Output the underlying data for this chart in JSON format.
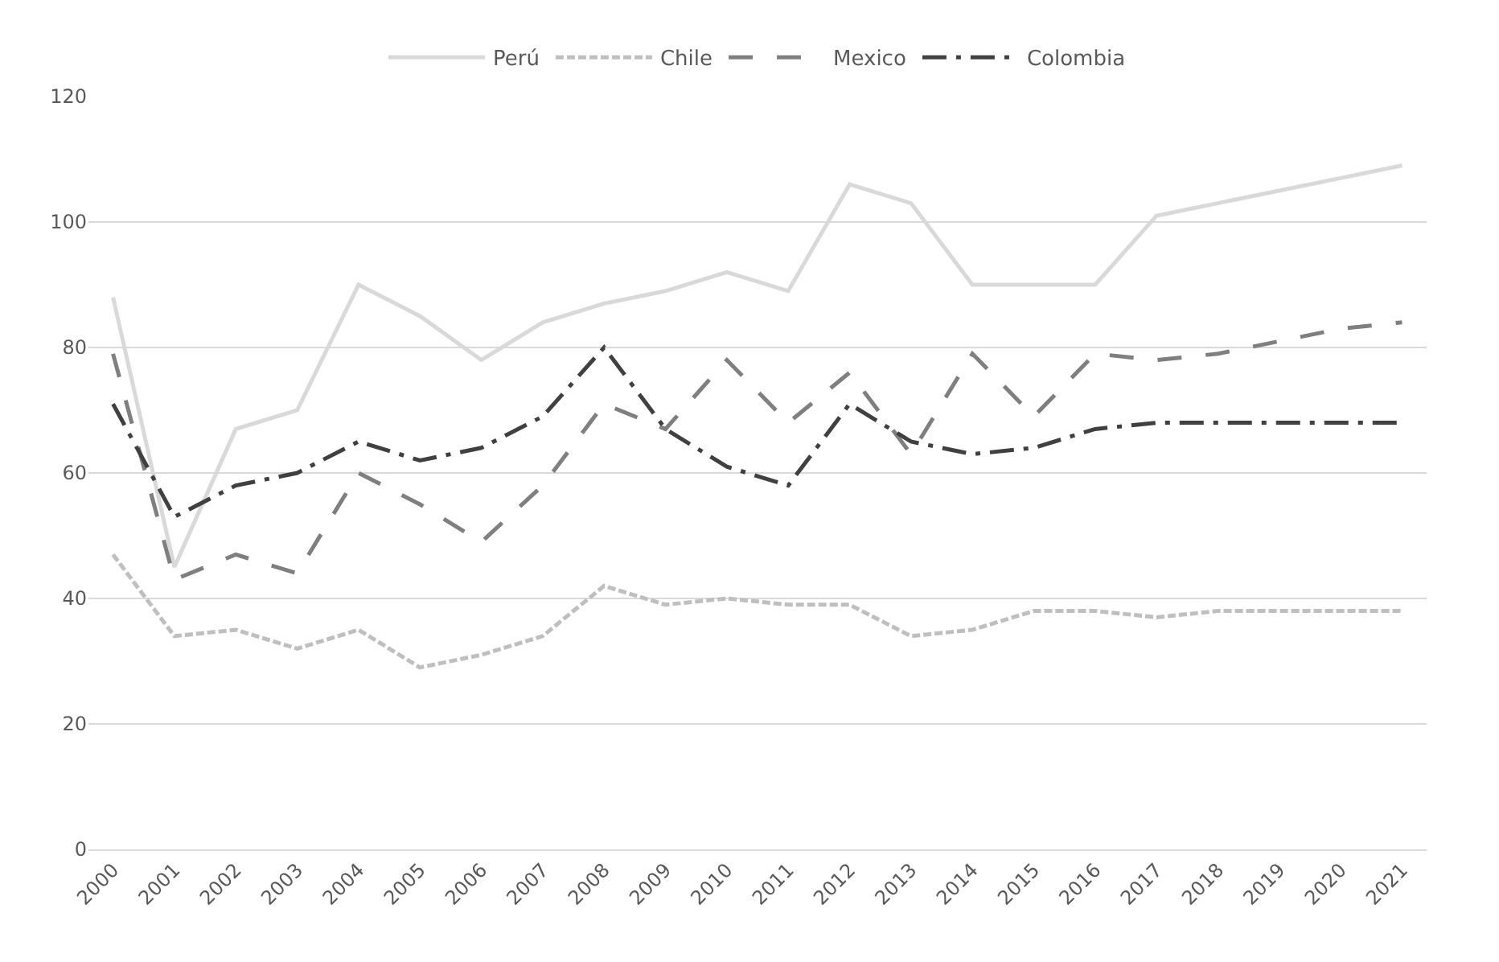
{
  "chart_data": {
    "type": "line",
    "categories": [
      "2000",
      "2001",
      "2002",
      "2003",
      "2004",
      "2005",
      "2006",
      "2007",
      "2008",
      "2009",
      "2010",
      "2011",
      "2012",
      "2013",
      "2014",
      "2015",
      "2016",
      "2017",
      "2018",
      "2019",
      "2020",
      "2021"
    ],
    "series": [
      {
        "name": "Perú",
        "color": "#d9d9d9",
        "line_style": "solid",
        "values": [
          88,
          45,
          67,
          70,
          90,
          85,
          78,
          84,
          87,
          89,
          92,
          89,
          106,
          103,
          90,
          90,
          90,
          101,
          103,
          105,
          107,
          109
        ]
      },
      {
        "name": "Chile",
        "color": "#bfbfbf",
        "line_style": "dashed",
        "values": [
          47,
          34,
          35,
          32,
          35,
          29,
          31,
          34,
          42,
          39,
          40,
          39,
          39,
          34,
          35,
          38,
          38,
          37,
          38,
          38,
          38,
          38
        ]
      },
      {
        "name": "Mexico",
        "color": "#7f7f7f",
        "line_style": "longdash",
        "values": [
          79,
          43,
          47,
          44,
          60,
          55,
          49,
          58,
          71,
          67,
          78,
          68,
          76,
          63,
          79,
          69,
          79,
          78,
          79,
          81,
          83,
          84
        ]
      },
      {
        "name": "Colombia",
        "color": "#404040",
        "line_style": "longdashdot",
        "values": [
          71,
          53,
          58,
          60,
          65,
          62,
          64,
          69,
          80,
          67,
          61,
          58,
          71,
          65,
          63,
          64,
          67,
          68,
          68,
          68,
          68,
          68
        ]
      }
    ],
    "ylim": [
      0,
      120
    ],
    "yticks": [
      0,
      20,
      40,
      60,
      80,
      100,
      120
    ],
    "grid": "y",
    "legend": "top",
    "marker": "none"
  }
}
